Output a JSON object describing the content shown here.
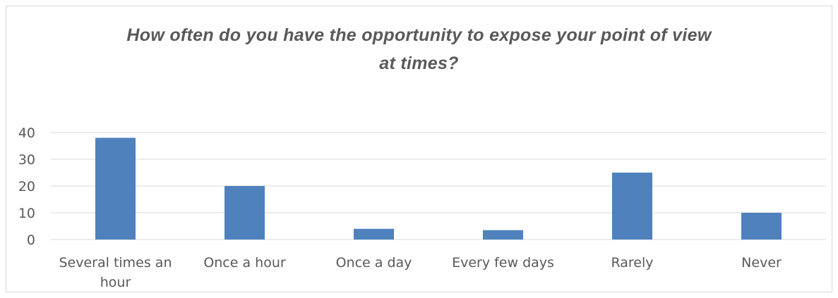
{
  "chart_data": {
    "type": "bar",
    "title_lines": [
      "How often do you have the opportunity to expose your point of view",
      "at times?"
    ],
    "categories": [
      [
        "Several times an",
        "hour"
      ],
      [
        "Once a hour"
      ],
      [
        "Once a day"
      ],
      [
        "Every few days"
      ],
      [
        "Rarely"
      ],
      [
        "Never"
      ]
    ],
    "values": [
      38,
      20,
      4,
      3.5,
      25,
      10
    ],
    "ylim": [
      0,
      40
    ],
    "yticks": [
      "0",
      "10",
      "20",
      "30",
      "40"
    ],
    "grid": true,
    "legend": "none",
    "bar_color": "#4f81bd",
    "grid_color": "#d9d9d9"
  }
}
